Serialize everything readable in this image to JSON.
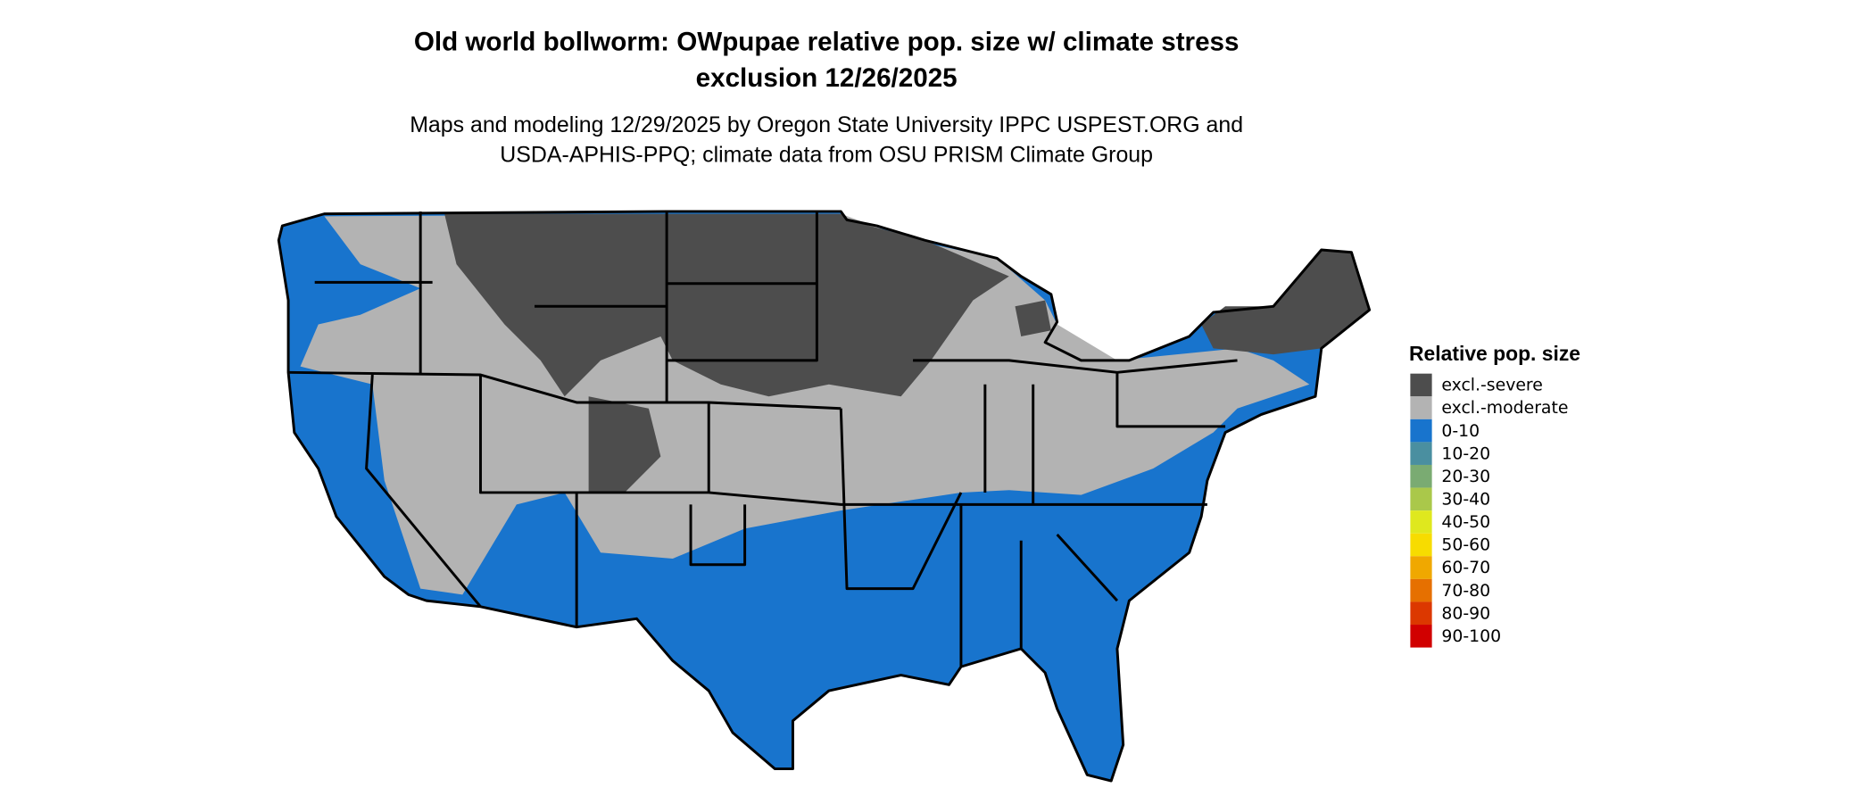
{
  "title": "Old world bollworm: OWpupae relative pop. size w/ climate stress",
  "title_line2": "exclusion 12/26/2025",
  "subtitle": "Maps and modeling 12/29/2025 by Oregon State University IPPC USPEST.ORG and",
  "subtitle_line2": "USDA-APHIS-PPQ; climate data from OSU PRISM Climate Group",
  "legend": {
    "title": "Relative pop. size",
    "items": [
      {
        "label": "excl.-severe",
        "color": "#4d4d4d"
      },
      {
        "label": "excl.-moderate",
        "color": "#b3b3b3"
      },
      {
        "label": "0-10",
        "color": "#1874cd"
      },
      {
        "label": "10-20",
        "color": "#4a8fa0"
      },
      {
        "label": "20-30",
        "color": "#7aab72"
      },
      {
        "label": "30-40",
        "color": "#aac84a"
      },
      {
        "label": "40-50",
        "color": "#dfe81e"
      },
      {
        "label": "50-60",
        "color": "#f7dc00"
      },
      {
        "label": "60-70",
        "color": "#f0a800"
      },
      {
        "label": "70-80",
        "color": "#e67000"
      },
      {
        "label": "80-90",
        "color": "#dc3800"
      },
      {
        "label": "90-100",
        "color": "#d10000"
      }
    ]
  }
}
